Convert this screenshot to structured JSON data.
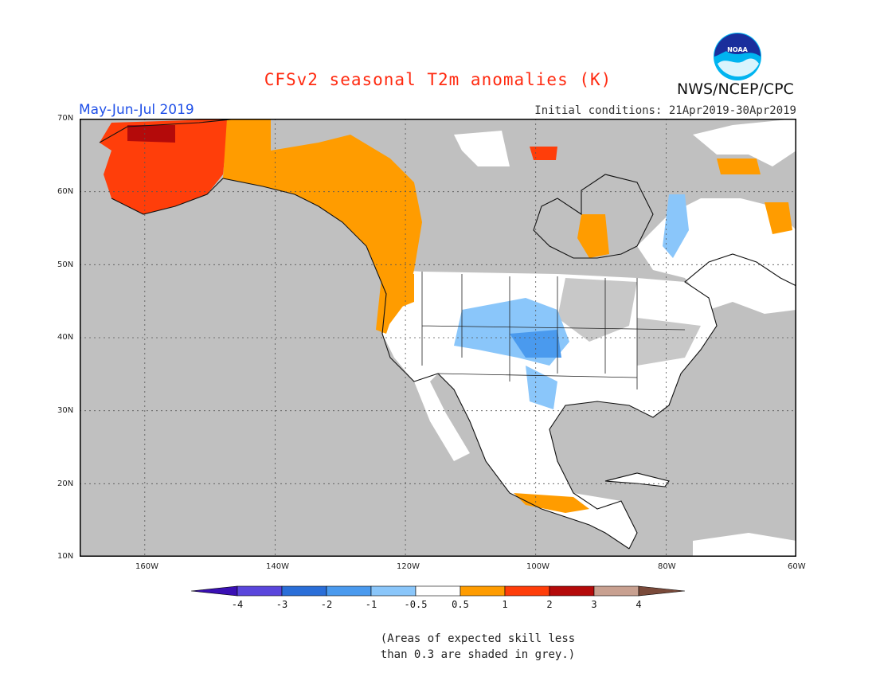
{
  "title": "CFSv2 seasonal T2m anomalies (K)",
  "period": "May-Jun-Jul 2019",
  "initial_conditions": "Initial conditions: 21Apr2019-30Apr2019",
  "agency": "NWS/NCEP/CPC",
  "logo_text": "NOAA",
  "lat_labels": [
    "70N",
    "60N",
    "50N",
    "40N",
    "30N",
    "20N",
    "10N"
  ],
  "lon_labels": [
    "160W",
    "140W",
    "120W",
    "100W",
    "80W",
    "60W"
  ],
  "colorbar": {
    "labels": [
      "-4",
      "-3",
      "-2",
      "-1",
      "-0.5",
      "0.5",
      "1",
      "2",
      "3",
      "4"
    ],
    "colors": [
      "#3a10b4",
      "#5a46dc",
      "#2a6ed8",
      "#4a9aee",
      "#8ac6fa",
      "#ffffff",
      "#ff9c00",
      "#ff3e0a",
      "#b40a0a",
      "#c8a090",
      "#7a4a3a"
    ]
  },
  "colors": {
    "skill_grey": "#c0c0c0",
    "land_outline": "#111111",
    "grid": "#555555"
  },
  "note_lines": [
    "(Areas of expected skill less",
    "than 0.3 are shaded in grey.)"
  ]
}
